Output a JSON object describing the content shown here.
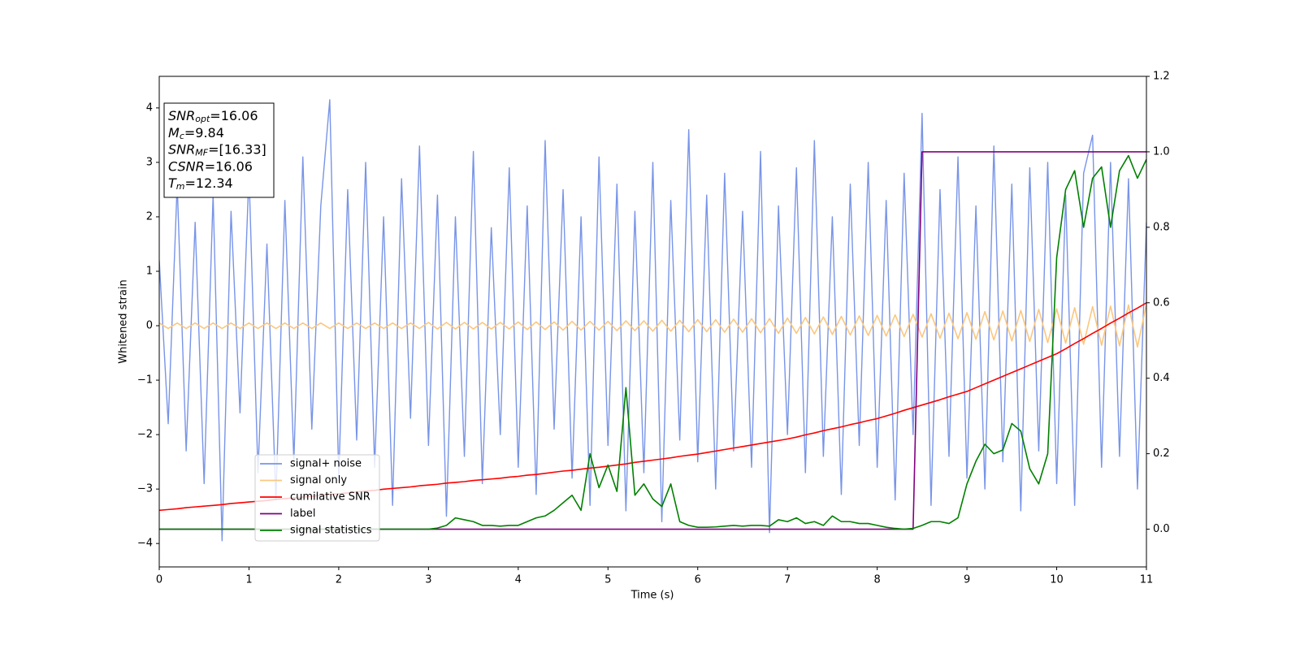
{
  "chart_data": {
    "type": "line",
    "x_label": "Time (s)",
    "y_label": "Whitened strain",
    "xlim": [
      0,
      11
    ],
    "xticks": [
      0,
      1,
      2,
      3,
      4,
      5,
      6,
      7,
      8,
      9,
      10,
      11
    ],
    "ylim": [
      -4.43,
      4.58
    ],
    "yticks": [
      {
        "value": -4,
        "label": "−4"
      },
      {
        "value": -3,
        "label": "−3"
      },
      {
        "value": -2,
        "label": "−2"
      },
      {
        "value": -1,
        "label": "−1"
      },
      0,
      1,
      2,
      3,
      4
    ],
    "y2lim": [
      -0.1,
      1.2
    ],
    "y2ticks": [
      {
        "value": 0,
        "label": "0.0"
      },
      0.2,
      0.4,
      0.6,
      0.8,
      {
        "value": 1,
        "label": "1.0"
      },
      1.2
    ],
    "textbox": [
      {
        "text": "SNR",
        "sub": "opt",
        "value": "=16.06"
      },
      {
        "text": "M",
        "sub": "c",
        "value": "=9.84"
      },
      {
        "text": "SNR",
        "sub": "MF",
        "value": "=[16.33]"
      },
      {
        "text": "CSNR",
        "value": "=16.06"
      },
      {
        "text": "T",
        "sub": "m",
        "value": "=12.34"
      }
    ],
    "x": [
      0,
      0.1,
      0.2,
      0.3,
      0.4,
      0.5,
      0.6,
      0.7,
      0.8,
      0.9,
      1,
      1.1,
      1.2,
      1.3,
      1.4,
      1.5,
      1.6,
      1.7,
      1.8,
      1.9,
      2,
      2.1,
      2.2,
      2.3,
      2.4,
      2.5,
      2.6,
      2.7,
      2.8,
      2.9,
      3,
      3.1,
      3.2,
      3.3,
      3.4,
      3.5,
      3.6,
      3.7,
      3.8,
      3.9,
      4,
      4.1,
      4.2,
      4.3,
      4.4,
      4.5,
      4.6,
      4.7,
      4.8,
      4.9,
      5,
      5.1,
      5.2,
      5.3,
      5.4,
      5.5,
      5.6,
      5.7,
      5.8,
      5.9,
      6,
      6.1,
      6.2,
      6.3,
      6.4,
      6.5,
      6.6,
      6.7,
      6.8,
      6.9,
      7,
      7.1,
      7.2,
      7.3,
      7.4,
      7.5,
      7.6,
      7.7,
      7.8,
      7.9,
      8,
      8.1,
      8.2,
      8.3,
      8.4,
      8.5,
      8.6,
      8.7,
      8.8,
      8.9,
      9,
      9.1,
      9.2,
      9.3,
      9.4,
      9.5,
      9.6,
      9.7,
      9.8,
      9.9,
      10,
      10.1,
      10.2,
      10.3,
      10.4,
      10.5,
      10.6,
      10.7,
      10.8,
      10.9,
      11
    ],
    "series": [
      {
        "name": "signal+ noise",
        "color": "#7894e8",
        "values": [
          1.2,
          -1.8,
          2.6,
          -2.3,
          1.9,
          -2.9,
          2.4,
          -3.95,
          2.1,
          -1.6,
          2.8,
          -2.7,
          1.5,
          -3.2,
          2.3,
          -2.5,
          3.1,
          -1.9,
          2.2,
          4.15,
          -2.8,
          2.5,
          -2.1,
          3.0,
          -2.6,
          2.0,
          -3.3,
          2.7,
          -1.7,
          3.3,
          -2.2,
          2.4,
          -3.5,
          2.0,
          -2.4,
          3.2,
          -2.9,
          1.8,
          -2.0,
          2.9,
          -2.6,
          2.2,
          -3.1,
          3.4,
          -1.9,
          2.5,
          -2.8,
          2.0,
          -3.3,
          3.1,
          -2.2,
          2.6,
          -3.4,
          2.1,
          -2.7,
          3.0,
          -3.6,
          2.3,
          -2.1,
          3.6,
          -2.5,
          2.4,
          -3.0,
          2.8,
          -2.3,
          2.1,
          -2.6,
          3.2,
          -3.8,
          2.2,
          -2.0,
          2.9,
          -2.7,
          3.4,
          -2.4,
          2.0,
          -3.1,
          2.6,
          -2.2,
          3.0,
          -2.6,
          2.3,
          -3.2,
          2.8,
          -2.0,
          3.9,
          -3.3,
          2.5,
          -2.4,
          3.1,
          -2.8,
          2.2,
          -3.0,
          3.3,
          -2.5,
          2.6,
          -3.4,
          2.9,
          -2.3,
          3.0,
          -2.9,
          2.4,
          -3.3,
          2.8,
          3.5,
          -2.6,
          3.0,
          -2.4,
          2.7,
          -3.0,
          1.9
        ]
      },
      {
        "name": "signal only",
        "color": "#fbc77f",
        "values": [
          0.05,
          -0.05,
          0.05,
          -0.05,
          0.05,
          -0.05,
          0.05,
          -0.05,
          0.05,
          -0.05,
          0.05,
          -0.05,
          0.05,
          -0.05,
          0.05,
          -0.05,
          0.05,
          -0.05,
          0.05,
          -0.05,
          0.05,
          -0.05,
          0.05,
          -0.05,
          0.05,
          -0.05,
          0.05,
          -0.05,
          0.05,
          -0.05,
          0.06,
          -0.06,
          0.06,
          -0.06,
          0.06,
          -0.06,
          0.06,
          -0.06,
          0.06,
          -0.06,
          0.07,
          -0.07,
          0.07,
          -0.07,
          0.07,
          -0.08,
          0.08,
          -0.08,
          0.08,
          -0.08,
          0.08,
          -0.09,
          0.09,
          -0.09,
          0.09,
          -0.1,
          0.1,
          -0.1,
          0.1,
          -0.11,
          0.11,
          -0.11,
          0.11,
          -0.12,
          0.12,
          -0.12,
          0.13,
          -0.13,
          0.13,
          -0.14,
          0.14,
          -0.14,
          0.15,
          -0.15,
          0.16,
          -0.16,
          0.17,
          -0.17,
          0.18,
          -0.18,
          0.19,
          -0.19,
          0.2,
          -0.2,
          0.21,
          -0.21,
          0.22,
          -0.23,
          0.23,
          -0.24,
          0.24,
          -0.25,
          0.26,
          -0.26,
          0.27,
          -0.28,
          0.28,
          -0.29,
          0.3,
          -0.31,
          0.31,
          -0.32,
          0.33,
          -0.34,
          0.35,
          -0.36,
          0.36,
          -0.37,
          0.38,
          -0.39,
          0.4
        ]
      },
      {
        "name": "cumilative SNR",
        "color": "#ff0000",
        "axis": "y2",
        "values": [
          0.05,
          0.052,
          0.054,
          0.057,
          0.059,
          0.061,
          0.063,
          0.065,
          0.068,
          0.07,
          0.072,
          0.074,
          0.076,
          0.079,
          0.081,
          0.083,
          0.085,
          0.087,
          0.09,
          0.092,
          0.094,
          0.096,
          0.099,
          0.101,
          0.103,
          0.106,
          0.108,
          0.11,
          0.112,
          0.115,
          0.117,
          0.119,
          0.122,
          0.124,
          0.126,
          0.129,
          0.131,
          0.133,
          0.135,
          0.138,
          0.14,
          0.143,
          0.145,
          0.148,
          0.151,
          0.154,
          0.156,
          0.159,
          0.162,
          0.164,
          0.167,
          0.17,
          0.173,
          0.177,
          0.18,
          0.183,
          0.186,
          0.189,
          0.193,
          0.196,
          0.199,
          0.203,
          0.207,
          0.211,
          0.215,
          0.219,
          0.223,
          0.227,
          0.231,
          0.235,
          0.239,
          0.244,
          0.25,
          0.255,
          0.261,
          0.266,
          0.271,
          0.277,
          0.282,
          0.288,
          0.293,
          0.3,
          0.307,
          0.315,
          0.322,
          0.329,
          0.336,
          0.343,
          0.351,
          0.358,
          0.365,
          0.375,
          0.385,
          0.395,
          0.405,
          0.415,
          0.425,
          0.435,
          0.445,
          0.455,
          0.465,
          0.478,
          0.492,
          0.505,
          0.519,
          0.532,
          0.546,
          0.559,
          0.573,
          0.586,
          0.6
        ]
      },
      {
        "name": "label",
        "color": "#800080",
        "axis": "y2",
        "values": [
          0,
          0,
          0,
          0,
          0,
          0,
          0,
          0,
          0,
          0,
          0,
          0,
          0,
          0,
          0,
          0,
          0,
          0,
          0,
          0,
          0,
          0,
          0,
          0,
          0,
          0,
          0,
          0,
          0,
          0,
          0,
          0,
          0,
          0,
          0,
          0,
          0,
          0,
          0,
          0,
          0,
          0,
          0,
          0,
          0,
          0,
          0,
          0,
          0,
          0,
          0,
          0,
          0,
          0,
          0,
          0,
          0,
          0,
          0,
          0,
          0,
          0,
          0,
          0,
          0,
          0,
          0,
          0,
          0,
          0,
          0,
          0,
          0,
          0,
          0,
          0,
          0,
          0,
          0,
          0,
          0,
          0,
          0,
          0,
          0,
          1,
          1,
          1,
          1,
          1,
          1,
          1,
          1,
          1,
          1,
          1,
          1,
          1,
          1,
          1,
          1,
          1,
          1,
          1,
          1,
          1,
          1,
          1,
          1,
          1,
          1
        ]
      },
      {
        "name": "signal statistics",
        "color": "#008000",
        "axis": "y2",
        "values": [
          0,
          0,
          0,
          0,
          0,
          0,
          0,
          0,
          0,
          0,
          0,
          0,
          0,
          0,
          0,
          0,
          0,
          0,
          0,
          0,
          0,
          0,
          0,
          0,
          0,
          0,
          0,
          0,
          0,
          0,
          0,
          0.003,
          0.01,
          0.03,
          0.025,
          0.02,
          0.01,
          0.01,
          0.008,
          0.01,
          0.01,
          0.02,
          0.03,
          0.035,
          0.05,
          0.07,
          0.09,
          0.05,
          0.2,
          0.11,
          0.17,
          0.1,
          0.375,
          0.09,
          0.12,
          0.08,
          0.06,
          0.12,
          0.02,
          0.01,
          0.005,
          0.005,
          0.006,
          0.008,
          0.01,
          0.008,
          0.01,
          0.01,
          0.008,
          0.025,
          0.02,
          0.03,
          0.015,
          0.02,
          0.01,
          0.035,
          0.02,
          0.02,
          0.015,
          0.015,
          0.01,
          0.005,
          0.002,
          0,
          0.002,
          0.01,
          0.02,
          0.02,
          0.015,
          0.03,
          0.12,
          0.18,
          0.225,
          0.2,
          0.21,
          0.28,
          0.26,
          0.16,
          0.12,
          0.2,
          0.72,
          0.9,
          0.95,
          0.8,
          0.93,
          0.96,
          0.8,
          0.95,
          0.99,
          0.93,
          0.98
        ]
      }
    ]
  }
}
